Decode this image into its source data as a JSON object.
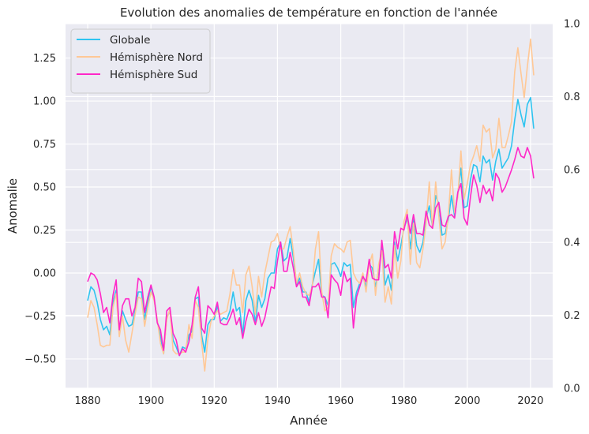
{
  "chart_data": {
    "type": "line",
    "title": "Evolution des anomalies de température en fonction de l'année",
    "xlabel": "Année",
    "ylabel": "Anomalie",
    "xlim": [
      1873,
      2027
    ],
    "ylim": [
      -0.67,
      1.45
    ],
    "y2lim": [
      0.0,
      1.0
    ],
    "xticks": [
      "1880",
      "1900",
      "1920",
      "1940",
      "1960",
      "1980",
      "2000",
      "2020"
    ],
    "yticks": [
      "−0.50",
      "−0.25",
      "0.00",
      "0.25",
      "0.50",
      "0.75",
      "1.00",
      "1.25"
    ],
    "y2ticks": [
      "0.0",
      "0.2",
      "0.4",
      "0.6",
      "0.8",
      "1.0"
    ],
    "grid": true,
    "legend_position": "top-left",
    "background": "#eaeaf2",
    "x_start": 1880,
    "series": [
      {
        "name": "Globale",
        "color": "#2ec4f0",
        "values": [
          -0.16,
          -0.08,
          -0.1,
          -0.17,
          -0.27,
          -0.33,
          -0.31,
          -0.36,
          -0.17,
          -0.1,
          -0.35,
          -0.22,
          -0.27,
          -0.31,
          -0.3,
          -0.22,
          -0.11,
          -0.11,
          -0.27,
          -0.17,
          -0.08,
          -0.15,
          -0.28,
          -0.37,
          -0.47,
          -0.26,
          -0.22,
          -0.39,
          -0.43,
          -0.48,
          -0.43,
          -0.44,
          -0.36,
          -0.34,
          -0.15,
          -0.14,
          -0.36,
          -0.46,
          -0.3,
          -0.27,
          -0.27,
          -0.19,
          -0.28,
          -0.26,
          -0.27,
          -0.22,
          -0.11,
          -0.22,
          -0.2,
          -0.36,
          -0.16,
          -0.1,
          -0.16,
          -0.29,
          -0.13,
          -0.2,
          -0.15,
          -0.03,
          0.0,
          0.0,
          0.14,
          0.18,
          0.07,
          0.09,
          0.2,
          0.09,
          -0.07,
          -0.03,
          -0.11,
          -0.11,
          -0.17,
          -0.07,
          0.01,
          0.08,
          -0.13,
          -0.14,
          -0.19,
          0.05,
          0.06,
          0.03,
          -0.02,
          0.06,
          0.04,
          0.05,
          -0.2,
          -0.11,
          -0.06,
          -0.02,
          -0.08,
          0.05,
          0.03,
          -0.08,
          0.01,
          0.16,
          -0.07,
          -0.01,
          -0.1,
          0.18,
          0.07,
          0.16,
          0.26,
          0.32,
          0.14,
          0.31,
          0.16,
          0.12,
          0.18,
          0.32,
          0.39,
          0.27,
          0.45,
          0.4,
          0.22,
          0.23,
          0.31,
          0.45,
          0.33,
          0.46,
          0.61,
          0.38,
          0.39,
          0.54,
          0.63,
          0.62,
          0.53,
          0.68,
          0.64,
          0.66,
          0.54,
          0.65,
          0.72,
          0.61,
          0.64,
          0.67,
          0.74,
          0.89,
          1.01,
          0.92,
          0.85,
          0.98,
          1.02,
          0.84
        ]
      },
      {
        "name": "Hémisphère Nord",
        "color": "#ffc896",
        "values": [
          -0.26,
          -0.16,
          -0.2,
          -0.3,
          -0.42,
          -0.43,
          -0.42,
          -0.42,
          -0.2,
          -0.12,
          -0.37,
          -0.25,
          -0.39,
          -0.46,
          -0.35,
          -0.24,
          -0.14,
          -0.15,
          -0.31,
          -0.2,
          -0.11,
          -0.16,
          -0.27,
          -0.41,
          -0.47,
          -0.27,
          -0.21,
          -0.45,
          -0.47,
          -0.47,
          -0.46,
          -0.46,
          -0.3,
          -0.38,
          -0.16,
          -0.2,
          -0.4,
          -0.57,
          -0.38,
          -0.28,
          -0.25,
          -0.22,
          -0.24,
          -0.23,
          -0.22,
          -0.12,
          0.02,
          -0.07,
          -0.07,
          -0.23,
          -0.01,
          0.04,
          -0.08,
          -0.24,
          -0.02,
          -0.14,
          0.0,
          0.09,
          0.18,
          0.19,
          0.23,
          0.14,
          0.14,
          0.21,
          0.27,
          0.13,
          -0.06,
          0.0,
          -0.08,
          -0.12,
          -0.13,
          -0.08,
          0.14,
          0.24,
          -0.11,
          -0.22,
          -0.2,
          0.1,
          0.17,
          0.15,
          0.14,
          0.12,
          0.18,
          0.19,
          0.0,
          -0.04,
          -0.06,
          0.0,
          -0.11,
          0.05,
          0.11,
          -0.13,
          0.05,
          0.13,
          -0.17,
          -0.08,
          -0.18,
          0.16,
          -0.03,
          0.07,
          0.3,
          0.37,
          0.05,
          0.29,
          0.06,
          0.03,
          0.14,
          0.29,
          0.53,
          0.26,
          0.53,
          0.33,
          0.14,
          0.18,
          0.33,
          0.6,
          0.35,
          0.44,
          0.71,
          0.43,
          0.52,
          0.63,
          0.68,
          0.74,
          0.65,
          0.86,
          0.82,
          0.84,
          0.67,
          0.72,
          0.9,
          0.73,
          0.73,
          0.8,
          0.88,
          1.17,
          1.31,
          1.16,
          1.02,
          1.2,
          1.36,
          1.15
        ]
      },
      {
        "name": "Hémisphère Sud",
        "color": "#ff28c8",
        "values": [
          -0.05,
          0.0,
          -0.01,
          -0.04,
          -0.12,
          -0.23,
          -0.2,
          -0.29,
          -0.13,
          -0.04,
          -0.33,
          -0.19,
          -0.15,
          -0.15,
          -0.25,
          -0.2,
          -0.03,
          -0.05,
          -0.23,
          -0.14,
          -0.07,
          -0.14,
          -0.29,
          -0.33,
          -0.45,
          -0.22,
          -0.2,
          -0.35,
          -0.39,
          -0.48,
          -0.44,
          -0.46,
          -0.4,
          -0.3,
          -0.14,
          -0.08,
          -0.32,
          -0.35,
          -0.19,
          -0.21,
          -0.24,
          -0.17,
          -0.29,
          -0.3,
          -0.3,
          -0.26,
          -0.21,
          -0.3,
          -0.26,
          -0.38,
          -0.28,
          -0.21,
          -0.24,
          -0.3,
          -0.23,
          -0.31,
          -0.26,
          -0.17,
          -0.08,
          -0.09,
          0.07,
          0.18,
          0.01,
          0.01,
          0.12,
          0.03,
          -0.08,
          -0.05,
          -0.14,
          -0.14,
          -0.19,
          -0.08,
          -0.08,
          -0.06,
          -0.14,
          -0.14,
          -0.26,
          -0.01,
          -0.04,
          -0.06,
          -0.13,
          0.01,
          -0.05,
          -0.03,
          -0.32,
          -0.14,
          -0.08,
          -0.02,
          -0.05,
          0.08,
          -0.03,
          -0.04,
          -0.04,
          0.19,
          0.03,
          0.05,
          -0.03,
          0.24,
          0.14,
          0.26,
          0.25,
          0.34,
          0.23,
          0.34,
          0.23,
          0.23,
          0.22,
          0.36,
          0.28,
          0.26,
          0.38,
          0.41,
          0.28,
          0.27,
          0.33,
          0.34,
          0.32,
          0.47,
          0.52,
          0.32,
          0.28,
          0.44,
          0.57,
          0.51,
          0.41,
          0.51,
          0.46,
          0.49,
          0.42,
          0.58,
          0.55,
          0.47,
          0.5,
          0.55,
          0.6,
          0.66,
          0.73,
          0.68,
          0.67,
          0.73,
          0.68,
          0.55
        ]
      }
    ]
  }
}
